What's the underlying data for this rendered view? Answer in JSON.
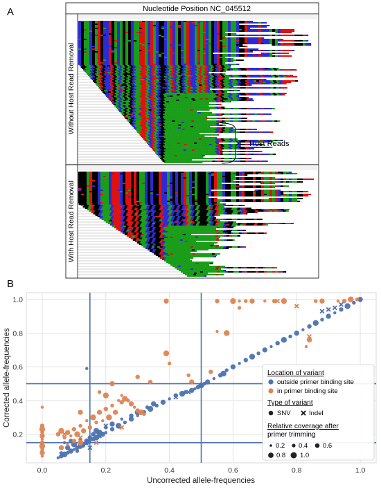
{
  "panel_a": {
    "label": "A",
    "title": "Nucleotide Position NC_045512",
    "top_track_label": "Without Host Read Removal",
    "bottom_track_label": "With Host Read Removal",
    "annotation": "Host Reads",
    "base_colors": {
      "A": "#1a9e1a",
      "C": "#2b2bd6",
      "G": "#000000",
      "T": "#e01010"
    }
  },
  "panel_b": {
    "label": "B"
  },
  "chart_data": {
    "type": "scatter",
    "xlabel": "Uncorrected allele-frequencies",
    "ylabel": "Corrected allele-frequencies",
    "xlim": [
      -0.05,
      1.05
    ],
    "ylim": [
      0.03,
      1.04
    ],
    "x_ticks": [
      "0.0",
      "0.2",
      "0.4",
      "0.6",
      "0.8",
      "1.0"
    ],
    "y_ticks": [
      "0.2",
      "0.4",
      "0.6",
      "0.8",
      "1.0"
    ],
    "grid": true,
    "reference_lines": {
      "vertical": [
        0.15,
        0.5
      ],
      "horizontal": [
        0.15,
        0.5
      ]
    },
    "colors": {
      "outside": "#4c72b0",
      "inside": "#dd8452",
      "lines": "#4c72b0"
    },
    "legend": {
      "placement": "center-right",
      "location_title": "Location of variant",
      "location_items": [
        "outside primer binding site",
        "in primer binding site"
      ],
      "type_title": "Type of variant",
      "type_items": [
        "SNV",
        "Indel"
      ],
      "coverage_title_line1": "Relative coverage after",
      "coverage_title_line2": "primer trimming",
      "coverage_items": [
        "0.2",
        "0.4",
        "0.6",
        "0.8",
        "1.0"
      ]
    },
    "series": [
      {
        "name": "outside primer binding site",
        "marker": "circle",
        "points": [
          [
            0.05,
            0.06
          ],
          [
            0.06,
            0.07
          ],
          [
            0.07,
            0.08
          ],
          [
            0.08,
            0.09
          ],
          [
            0.09,
            0.1
          ],
          [
            0.1,
            0.11
          ],
          [
            0.11,
            0.12
          ],
          [
            0.12,
            0.13
          ],
          [
            0.13,
            0.14
          ],
          [
            0.14,
            0.15
          ],
          [
            0.15,
            0.16
          ],
          [
            0.16,
            0.17
          ],
          [
            0.17,
            0.18
          ],
          [
            0.18,
            0.19
          ],
          [
            0.19,
            0.2
          ],
          [
            0.2,
            0.21
          ],
          [
            0.22,
            0.23
          ],
          [
            0.24,
            0.25
          ],
          [
            0.26,
            0.27
          ],
          [
            0.28,
            0.29
          ],
          [
            0.3,
            0.31
          ],
          [
            0.32,
            0.33
          ],
          [
            0.34,
            0.35
          ],
          [
            0.36,
            0.37
          ],
          [
            0.38,
            0.39
          ],
          [
            0.4,
            0.41
          ],
          [
            0.42,
            0.43
          ],
          [
            0.44,
            0.44
          ],
          [
            0.45,
            0.45
          ],
          [
            0.47,
            0.46
          ],
          [
            0.48,
            0.47
          ],
          [
            0.49,
            0.48
          ],
          [
            0.5,
            0.49
          ],
          [
            0.51,
            0.5
          ],
          [
            0.52,
            0.51
          ],
          [
            0.54,
            0.53
          ],
          [
            0.56,
            0.55
          ],
          [
            0.57,
            0.56
          ],
          [
            0.58,
            0.58
          ],
          [
            0.6,
            0.6
          ],
          [
            0.62,
            0.62
          ],
          [
            0.64,
            0.64
          ],
          [
            0.66,
            0.66
          ],
          [
            0.68,
            0.68
          ],
          [
            0.7,
            0.7
          ],
          [
            0.72,
            0.72
          ],
          [
            0.74,
            0.74
          ],
          [
            0.76,
            0.76
          ],
          [
            0.78,
            0.78
          ],
          [
            0.8,
            0.8
          ],
          [
            0.82,
            0.82
          ],
          [
            0.84,
            0.84
          ],
          [
            0.86,
            0.86
          ],
          [
            0.88,
            0.88
          ],
          [
            0.9,
            0.9
          ],
          [
            0.92,
            0.92
          ],
          [
            0.94,
            0.94
          ],
          [
            0.96,
            0.96
          ],
          [
            0.98,
            0.98
          ],
          [
            1.0,
            1.0
          ],
          [
            0.07,
            0.15
          ],
          [
            0.09,
            0.16
          ],
          [
            0.1,
            0.14
          ],
          [
            0.12,
            0.17
          ],
          [
            0.14,
            0.16
          ],
          [
            0.13,
            0.13
          ],
          [
            0.16,
            0.2
          ],
          [
            0.18,
            0.21
          ],
          [
            0.11,
            0.1
          ],
          [
            0.08,
            0.12
          ],
          [
            0.06,
            0.09
          ],
          [
            0.15,
            0.18
          ],
          [
            0.17,
            0.22
          ],
          [
            0.2,
            0.24
          ],
          [
            0.22,
            0.26
          ],
          [
            0.25,
            0.29
          ],
          [
            0.28,
            0.31
          ],
          [
            0.3,
            0.33
          ],
          [
            0.33,
            0.36
          ],
          [
            0.35,
            0.38
          ],
          [
            0.14,
            0.59
          ]
        ]
      },
      {
        "name": "in primer binding site",
        "marker": "circle",
        "points": [
          [
            0.0,
            0.36
          ],
          [
            0.0,
            0.25
          ],
          [
            0.0,
            0.23
          ],
          [
            0.0,
            0.21
          ],
          [
            0.0,
            0.19
          ],
          [
            0.0,
            0.17
          ],
          [
            0.0,
            0.15
          ],
          [
            0.0,
            0.13
          ],
          [
            0.0,
            0.11
          ],
          [
            0.0,
            0.09
          ],
          [
            0.0,
            0.07
          ],
          [
            0.05,
            0.2
          ],
          [
            0.06,
            0.22
          ],
          [
            0.07,
            0.18
          ],
          [
            0.08,
            0.21
          ],
          [
            0.09,
            0.19
          ],
          [
            0.1,
            0.23
          ],
          [
            0.11,
            0.2
          ],
          [
            0.12,
            0.25
          ],
          [
            0.13,
            0.22
          ],
          [
            0.14,
            0.28
          ],
          [
            0.15,
            0.24
          ],
          [
            0.16,
            0.3
          ],
          [
            0.17,
            0.27
          ],
          [
            0.18,
            0.33
          ],
          [
            0.19,
            0.28
          ],
          [
            0.2,
            0.35
          ],
          [
            0.21,
            0.3
          ],
          [
            0.22,
            0.37
          ],
          [
            0.23,
            0.33
          ],
          [
            0.24,
            0.4
          ],
          [
            0.25,
            0.39
          ],
          [
            0.26,
            0.41
          ],
          [
            0.27,
            0.4
          ],
          [
            0.28,
            0.38
          ],
          [
            0.29,
            0.36
          ],
          [
            0.3,
            0.34
          ],
          [
            0.31,
            0.33
          ],
          [
            0.32,
            0.32
          ],
          [
            0.06,
            0.12
          ],
          [
            0.08,
            0.14
          ],
          [
            0.1,
            0.16
          ],
          [
            0.12,
            0.15
          ],
          [
            0.18,
            0.45
          ],
          [
            0.22,
            0.5
          ],
          [
            0.25,
            0.43
          ],
          [
            0.34,
            0.51
          ],
          [
            0.39,
            0.68
          ],
          [
            0.4,
            0.62
          ],
          [
            0.47,
            0.51
          ],
          [
            0.55,
            0.81
          ],
          [
            0.53,
            0.57
          ],
          [
            0.58,
            0.8
          ],
          [
            0.62,
            0.95
          ],
          [
            0.66,
            0.99
          ],
          [
            0.7,
            0.99
          ],
          [
            0.73,
            0.99
          ],
          [
            0.76,
            0.99
          ],
          [
            0.86,
            0.99
          ],
          [
            0.88,
            0.99
          ],
          [
            0.93,
            0.99
          ],
          [
            0.95,
            0.99
          ],
          [
            0.97,
            1.0
          ],
          [
            0.99,
            1.0
          ],
          [
            0.39,
            0.99
          ],
          [
            0.62,
            0.99
          ],
          [
            0.55,
            0.99
          ],
          [
            0.6,
            0.99
          ],
          [
            0.64,
            0.99
          ],
          [
            0.84,
            0.76
          ],
          [
            0.83,
            0.72
          ],
          [
            0.3,
            0.54
          ],
          [
            0.2,
            0.43
          ],
          [
            0.46,
            0.55
          ],
          [
            0.12,
            0.33
          ]
        ]
      },
      {
        "name": "outside primer binding site (Indel)",
        "marker": "x",
        "points": [
          [
            0.06,
            0.08
          ],
          [
            0.18,
            0.19
          ],
          [
            0.42,
            0.42
          ],
          [
            0.46,
            0.45
          ],
          [
            0.5,
            0.49
          ],
          [
            0.88,
            0.93
          ],
          [
            0.9,
            0.94
          ],
          [
            0.92,
            0.95
          ],
          [
            0.94,
            0.97
          ],
          [
            0.2,
            0.25
          ],
          [
            0.15,
            0.12
          ]
        ]
      },
      {
        "name": "in primer binding site (Indel)",
        "marker": "x",
        "points": [
          [
            0.8,
            0.96
          ],
          [
            0.84,
            0.78
          ],
          [
            0.25,
            0.24
          ],
          [
            0.74,
            0.99
          ],
          [
            0.17,
            0.15
          ],
          [
            0.07,
            0.2
          ],
          [
            0.12,
            0.18
          ]
        ]
      }
    ]
  }
}
